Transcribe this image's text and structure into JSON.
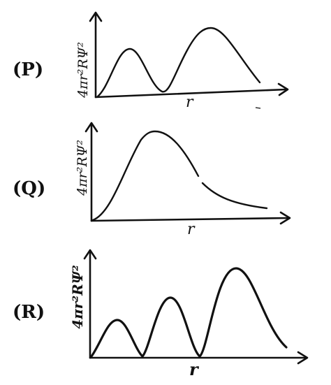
{
  "panels": [
    {
      "id": "P",
      "label": "(P)",
      "ylabel": "4πr²RΨ²",
      "xlabel": "r",
      "radial_nodes": 1,
      "peaks": 2
    },
    {
      "id": "Q",
      "label": "(Q)",
      "ylabel": "4πr²RΨ²",
      "xlabel": "r",
      "radial_nodes": 0,
      "peaks": 1
    },
    {
      "id": "R",
      "label": "(R)",
      "ylabel": "4πr²RΨ²",
      "xlabel": "r",
      "radial_nodes": 2,
      "peaks": 3
    }
  ]
}
